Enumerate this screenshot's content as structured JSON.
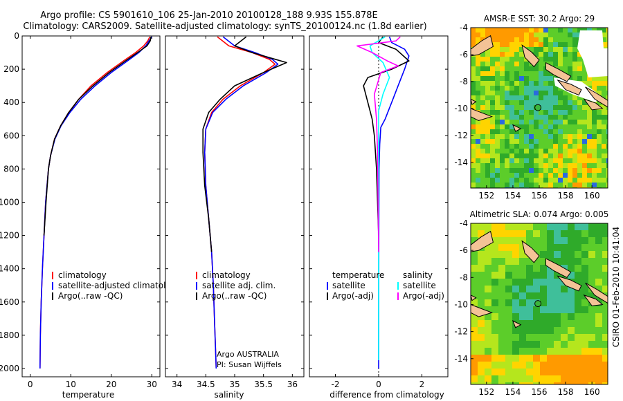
{
  "header": {
    "line1": "Argo profile: CS 5901610_106 25-Jan-2010 20100128_188 9.93S 155.878E",
    "line2": "Climatology: CARS2009. Satellite-adjusted climatology: synTS_20100124.nc (1.8d earlier)"
  },
  "credit": "CSIRO 01-Feb-2010 10:41:04",
  "chart_data": [
    {
      "type": "line",
      "id": "temperature",
      "xlabel": "temperature",
      "ylabel": "",
      "xlim": [
        -2,
        32
      ],
      "ylim": [
        2050,
        0
      ],
      "xticks": [
        0,
        10,
        20,
        30
      ],
      "yticks": [
        0,
        200,
        400,
        600,
        800,
        1000,
        1200,
        1400,
        1600,
        1800,
        2000
      ],
      "legend_position": "lower-right",
      "legend": [
        "climatology",
        "satellite-adjusted climatology",
        "Argo(..raw -QC)"
      ],
      "series": [
        {
          "name": "climatology",
          "color": "#ff0000",
          "x": [
            29.5,
            29.0,
            28.0,
            26.0,
            23.0,
            19.0,
            15.0,
            12.0,
            9.5,
            7.5,
            6.0,
            5.0,
            4.5,
            3.8,
            3.4,
            3.0,
            2.7,
            2.5,
            2.4
          ],
          "y": [
            5,
            30,
            60,
            100,
            150,
            220,
            300,
            380,
            460,
            540,
            620,
            720,
            800,
            1000,
            1200,
            1400,
            1600,
            1800,
            2000
          ]
        },
        {
          "name": "satellite-adjusted climatology",
          "color": "#0000ff",
          "x": [
            30.0,
            29.3,
            28.5,
            26.8,
            24.0,
            20.0,
            16.0,
            12.5,
            9.8,
            7.6,
            6.1,
            5.0,
            4.5,
            3.8,
            3.4,
            3.0,
            2.7,
            2.5,
            2.4
          ],
          "y": [
            5,
            30,
            60,
            100,
            150,
            220,
            300,
            380,
            460,
            540,
            620,
            720,
            800,
            1000,
            1200,
            1400,
            1600,
            1800,
            2000
          ]
        },
        {
          "name": "Argo(..raw -QC)",
          "color": "#000000",
          "x": [
            29.8,
            29.6,
            28.8,
            26.5,
            23.5,
            19.5,
            15.5,
            12.0,
            9.5,
            7.5,
            6.0,
            5.0,
            4.5,
            3.9,
            3.4
          ],
          "y": [
            5,
            30,
            60,
            100,
            150,
            220,
            300,
            380,
            460,
            540,
            620,
            720,
            800,
            1000,
            1200
          ]
        }
      ]
    },
    {
      "type": "line",
      "id": "salinity",
      "xlabel": "salinity",
      "ylabel": "",
      "xlim": [
        33.8,
        36.2
      ],
      "ylim": [
        2050,
        0
      ],
      "xticks": [
        34,
        34.5,
        35,
        35.5,
        36
      ],
      "yticks": [
        0,
        200,
        400,
        600,
        800,
        1000,
        1200,
        1400,
        1600,
        1800,
        2000
      ],
      "legend_position": "lower-right",
      "legend": [
        "climatology",
        "satellite adj. clim.",
        "Argo(..raw -QC)"
      ],
      "annotation": [
        "Argo AUSTRALIA",
        "PI: Susan Wijffels"
      ],
      "series": [
        {
          "name": "climatology",
          "color": "#ff0000",
          "x": [
            34.7,
            34.9,
            35.3,
            35.6,
            35.7,
            35.5,
            35.1,
            34.8,
            34.6,
            34.5,
            34.48,
            34.5,
            34.55,
            34.6,
            34.63,
            34.65,
            34.67,
            34.68
          ],
          "y": [
            5,
            60,
            100,
            140,
            170,
            220,
            300,
            380,
            460,
            560,
            700,
            900,
            1100,
            1300,
            1500,
            1700,
            1900,
            2000
          ]
        },
        {
          "name": "satellite adj. clim.",
          "color": "#0000ff",
          "x": [
            34.8,
            35.0,
            35.35,
            35.65,
            35.75,
            35.55,
            35.15,
            34.85,
            34.62,
            34.5,
            34.48,
            34.5,
            34.55,
            34.6,
            34.63,
            34.65,
            34.67,
            34.68
          ],
          "y": [
            5,
            60,
            100,
            140,
            170,
            220,
            300,
            380,
            460,
            560,
            700,
            900,
            1100,
            1300,
            1500,
            1700,
            1900,
            2000
          ]
        },
        {
          "name": "Argo(..raw -QC)",
          "color": "#000000",
          "x": [
            35.2,
            35.0,
            35.3,
            35.7,
            35.9,
            35.5,
            35.0,
            34.75,
            34.55,
            34.45,
            34.45,
            34.48,
            34.55,
            34.6
          ],
          "y": [
            5,
            60,
            100,
            140,
            160,
            220,
            300,
            380,
            460,
            560,
            700,
            900,
            1100,
            1300
          ]
        }
      ]
    },
    {
      "type": "line",
      "id": "difference",
      "xlabel": "difference from climatology",
      "ylabel": "",
      "xlim": [
        -3.2,
        3.2
      ],
      "ylim": [
        2050,
        0
      ],
      "xticks": [
        -2,
        0,
        2
      ],
      "yticks": [
        0,
        200,
        400,
        600,
        800,
        1000,
        1200,
        1400,
        1600,
        1800,
        2000
      ],
      "legend_position": "lower",
      "legend_headers": [
        "temperature",
        "salinity"
      ],
      "legend": [
        "satellite",
        "Argo(-adj)",
        "satellite",
        "Argo(-adj)"
      ],
      "series": [
        {
          "name": "temperature satellite",
          "color": "#0000ff",
          "x": [
            0.5,
            0.6,
            1.2,
            1.4,
            1.2,
            0.9,
            0.6,
            0.3,
            0.1,
            0.05,
            0.02,
            0.01,
            0.0
          ],
          "y": [
            5,
            40,
            80,
            120,
            200,
            300,
            400,
            500,
            550,
            650,
            800,
            1200,
            2000
          ]
        },
        {
          "name": "temperature Argo(-adj)",
          "color": "#000000",
          "x": [
            0.2,
            0.0,
            0.8,
            1.4,
            0.6,
            -0.5,
            -0.7,
            -0.5,
            -0.3,
            -0.2,
            -0.1,
            0.0
          ],
          "y": [
            5,
            40,
            80,
            150,
            200,
            250,
            300,
            400,
            500,
            600,
            800,
            1200
          ]
        },
        {
          "name": "salinity satellite",
          "color": "#00ffff",
          "x": [
            0.3,
            -0.4,
            -0.3,
            0.2,
            0.5,
            0.2,
            0.0,
            0.0,
            0.0,
            0.0
          ],
          "y": [
            5,
            60,
            100,
            160,
            250,
            350,
            450,
            700,
            1200,
            1950
          ]
        },
        {
          "name": "salinity Argo(-adj)",
          "color": "#ff00ff",
          "x": [
            1.0,
            0.8,
            -1.0,
            -0.3,
            0.4,
            0.9,
            0.1,
            -0.2,
            -0.1,
            -0.05,
            0.0
          ],
          "y": [
            5,
            30,
            60,
            100,
            150,
            180,
            220,
            350,
            500,
            700,
            1300
          ]
        }
      ]
    },
    {
      "type": "heatmap",
      "id": "sst-map",
      "title": "AMSR-E SST: 30.2 Argo: 29",
      "xlim": [
        150.8,
        161.2
      ],
      "ylim": [
        -15.9,
        -4
      ],
      "xticks": [
        152,
        154,
        156,
        158,
        160
      ],
      "yticks": [
        -4,
        -6,
        -8,
        -10,
        -12,
        -14
      ],
      "argo_marker": [
        155.9,
        -9.93
      ]
    },
    {
      "type": "heatmap",
      "id": "sla-map",
      "title": "Altimetric SLA: 0.074 Argo: 0.005",
      "xlim": [
        150.8,
        161.2
      ],
      "ylim": [
        -15.9,
        -4
      ],
      "xticks": [
        152,
        154,
        156,
        158,
        160
      ],
      "yticks": [
        -4,
        -6,
        -8,
        -10,
        -12,
        -14
      ],
      "argo_marker": [
        155.9,
        -9.93
      ]
    }
  ]
}
